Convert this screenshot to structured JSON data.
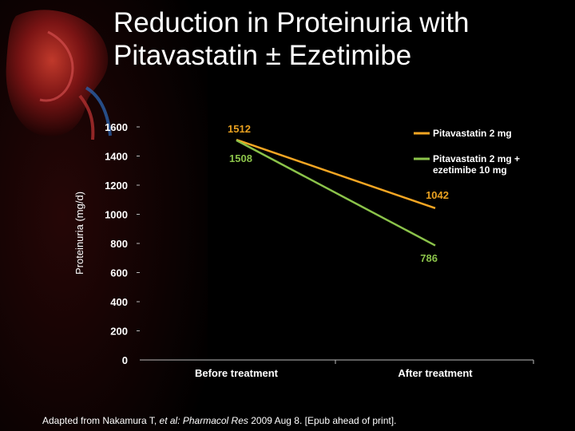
{
  "title": {
    "line1": "Reduction in Proteinuria with",
    "line2": "Pitavastatin ± Ezetimibe"
  },
  "source": {
    "prefix": "Adapted from Nakamura T, ",
    "italic": "et al: Pharmacol Res",
    "suffix": " 2009 Aug 8. [Epub ahead of print]."
  },
  "chart_data": {
    "type": "line",
    "title": "",
    "xlabel": "",
    "ylabel": "Proteinuria (mg/d)",
    "categories": [
      "Before treatment",
      "After treatment"
    ],
    "ylim": [
      0,
      1600
    ],
    "yticks": [
      0,
      200,
      400,
      600,
      800,
      1000,
      1200,
      1400,
      1600
    ],
    "grid": false,
    "legend_position": "top-right",
    "series": [
      {
        "name": "Pitavastatin 2 mg",
        "values": [
          1512,
          1042
        ],
        "color": "#f5a623",
        "label_color": "#e8a020"
      },
      {
        "name": "Pitavastatin 2 mg + ezetimibe 10 mg",
        "name_lines": [
          "Pitavastatin 2 mg +",
          "ezetimibe 10 mg"
        ],
        "values": [
          1508,
          786
        ],
        "color": "#8bc34a",
        "label_color": "#8bc34a"
      }
    ]
  },
  "colors": {
    "background": "#000000",
    "text": "#ffffff",
    "axis": "#bbbbbb",
    "decor": "#5a1010"
  }
}
